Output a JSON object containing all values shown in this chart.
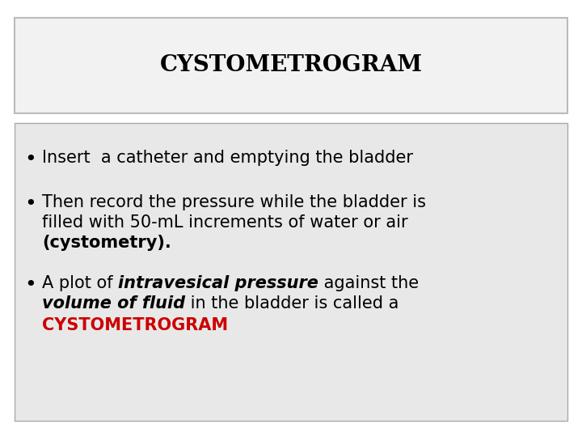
{
  "title": "CYSTOMETROGRAM",
  "title_fontsize": 20,
  "title_color": "#000000",
  "title_bg_color": "#f2f2f2",
  "title_border_color": "#bbbbbb",
  "body_bg_color": "#e8e8e8",
  "body_border_color": "#aaaaaa",
  "outer_bg_color": "#ffffff",
  "bullet1": "Insert  a catheter and emptying the bladder",
  "bullet2_line1": "Then record the pressure while the bladder is",
  "bullet2_line2": "filled with 50-mL increments of water or air",
  "bullet2_line3": "(cystometry).",
  "bullet3_pre": "A plot of ",
  "bullet3_ib1": "intravesical pressure",
  "bullet3_mid": " against the",
  "bullet3_ib2": "volume of fluid",
  "bullet3_mid2": " in the bladder is called a",
  "bullet3_red": "CYSTOMETROGRAM",
  "text_fontsize": 15,
  "red_color": "#cc0000",
  "black_color": "#000000"
}
